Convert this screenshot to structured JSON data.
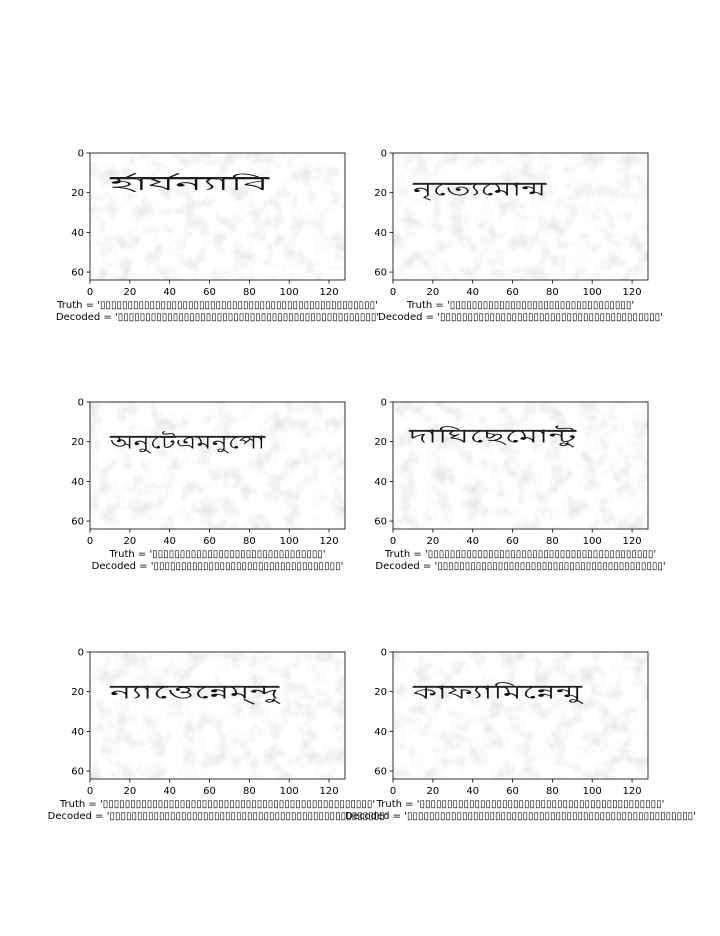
{
  "chart_data": [
    {
      "type": "image",
      "xlim": [
        0,
        128
      ],
      "ylim": [
        64,
        0
      ],
      "x_ticks": [
        0,
        20,
        40,
        60,
        80,
        100,
        120
      ],
      "y_ticks": [
        0,
        20,
        40,
        60
      ],
      "image_text_x": [
        10,
        90
      ],
      "image_text_y": 15,
      "captions": {
        "truth": "Truth = '▯▯▯▯▯▯▯▯▯▯▯▯▯▯▯▯▯▯▯▯▯▯▯▯▯▯▯▯▯▯▯▯▯▯▯▯▯▯▯▯▯▯▯▯▯▯▯▯▯▯'",
        "decoded": "Decoded = '▯▯▯▯▯▯▯▯▯▯▯▯▯▯▯▯▯▯▯▯▯▯▯▯▯▯▯▯▯▯▯▯▯▯▯▯▯▯▯▯▯▯▯▯▯▯▯'"
      }
    },
    {
      "type": "image",
      "xlim": [
        0,
        128
      ],
      "ylim": [
        64,
        0
      ],
      "x_ticks": [
        0,
        20,
        40,
        60,
        80,
        100,
        120
      ],
      "y_ticks": [
        0,
        20,
        40,
        60
      ],
      "image_text_x": [
        10,
        77
      ],
      "image_text_y": 18,
      "captions": {
        "truth": "Truth = '▯▯▯▯▯▯▯▯▯▯▯▯▯▯▯▯▯▯▯▯▯▯▯▯▯▯▯▯▯▯▯▯▯'",
        "decoded": "Decoded = '▯▯▯▯▯▯▯▯▯▯▯▯▯▯▯▯▯▯▯▯▯▯▯▯▯▯▯▯▯▯▯▯▯▯▯▯▯▯▯▯'"
      }
    },
    {
      "type": "image",
      "xlim": [
        0,
        128
      ],
      "ylim": [
        64,
        0
      ],
      "x_ticks": [
        0,
        20,
        40,
        60,
        80,
        100,
        120
      ],
      "y_ticks": [
        0,
        20,
        40,
        60
      ],
      "image_text_x": [
        10,
        88
      ],
      "image_text_y": 20,
      "captions": {
        "truth": "Truth = '▯▯▯▯▯▯▯▯▯▯▯▯▯▯▯▯▯▯▯▯▯▯▯▯▯▯▯▯▯▯▯'",
        "decoded": "Decoded = '▯▯▯▯▯▯▯▯▯▯▯▯▯▯▯▯▯▯▯▯▯▯▯▯▯▯▯▯▯▯▯▯▯▯'"
      }
    },
    {
      "type": "image",
      "xlim": [
        0,
        128
      ],
      "ylim": [
        64,
        0
      ],
      "x_ticks": [
        0,
        20,
        40,
        60,
        80,
        100,
        120
      ],
      "y_ticks": [
        0,
        20,
        40,
        60
      ],
      "image_text_x": [
        8,
        92
      ],
      "image_text_y": 17,
      "captions": {
        "truth": "Truth = '▯▯▯▯▯▯▯▯▯▯▯▯▯▯▯▯▯▯▯▯▯▯▯▯▯▯▯▯▯▯▯▯▯▯▯▯▯▯▯▯▯'",
        "decoded": "Decoded = '▯▯▯▯▯▯▯▯▯▯▯▯▯▯▯▯▯▯▯▯▯▯▯▯▯▯▯▯▯▯▯▯▯▯▯▯▯▯▯▯▯'"
      }
    },
    {
      "type": "image",
      "xlim": [
        0,
        128
      ],
      "ylim": [
        64,
        0
      ],
      "x_ticks": [
        0,
        20,
        40,
        60,
        80,
        100,
        120
      ],
      "y_ticks": [
        0,
        20,
        40,
        60
      ],
      "image_text_x": [
        10,
        95
      ],
      "image_text_y": 20,
      "captions": {
        "truth": "Truth = '▯▯▯▯▯▯▯▯▯▯▯▯▯▯▯▯▯▯▯▯▯▯▯▯▯▯▯▯▯▯▯▯▯▯▯▯▯▯▯▯▯▯▯▯▯▯▯▯▯'",
        "decoded": "Decoded = '▯▯▯▯▯▯▯▯▯▯▯▯▯▯▯▯▯▯▯▯▯▯▯▯▯▯▯▯▯▯▯▯▯▯▯▯▯▯▯▯▯▯▯▯▯▯▯▯▯▯'"
      }
    },
    {
      "type": "image",
      "xlim": [
        0,
        128
      ],
      "ylim": [
        64,
        0
      ],
      "x_ticks": [
        0,
        20,
        40,
        60,
        80,
        100,
        120
      ],
      "y_ticks": [
        0,
        20,
        40,
        60
      ],
      "image_text_x": [
        10,
        95
      ],
      "image_text_y": 20,
      "captions": {
        "truth": "Truth = '▯▯▯▯▯▯▯▯▯▯▯▯▯▯▯▯▯▯▯▯▯▯▯▯▯▯▯▯▯▯▯▯▯▯▯▯▯▯▯▯▯▯▯▯'",
        "decoded": "Decoded = '▯▯▯▯▯▯▯▯▯▯▯▯▯▯▯▯▯▯▯▯▯▯▯▯▯▯▯▯▯▯▯▯▯▯▯▯▯▯▯▯▯▯▯▯▯▯▯▯▯▯▯▯'"
      }
    }
  ],
  "panels": [
    {
      "image_script": "র্হার্যন্যাবি"
    },
    {
      "image_script": "নৃত্যেমোন্ম"
    },
    {
      "image_script": "অনুটেএমনুপো"
    },
    {
      "image_script": "দাঘিছেমোন্টু"
    },
    {
      "image_script": "ন্যাওেন্নেম্ন্দু"
    },
    {
      "image_script": "কাফ্যামিন্নেন্মু"
    }
  ]
}
